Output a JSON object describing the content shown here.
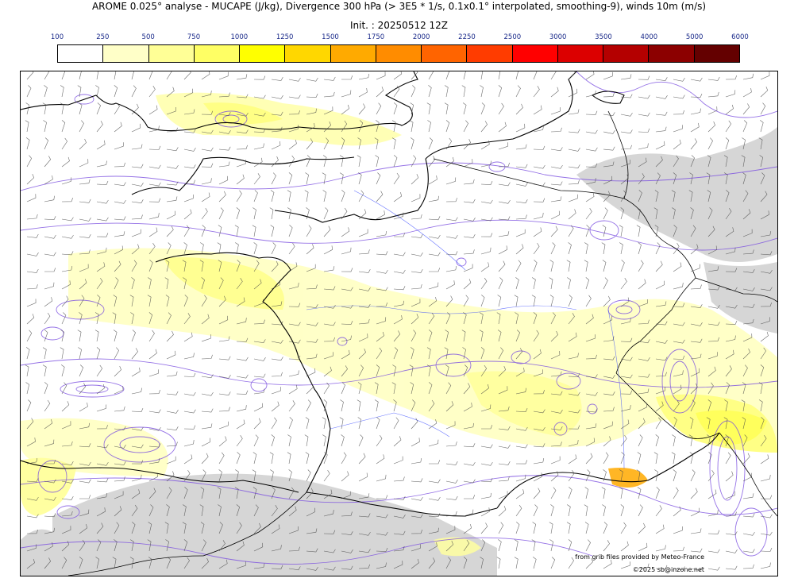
{
  "header": {
    "title": "AROME 0.025° analyse - MUCAPE (J/kg), Divergence 300 hPa (> 3E5 * 1/s, 0.1x0.1° interpolated, smoothing-9), winds 10m (m/s)",
    "init": "Init. : 20250512 12Z"
  },
  "colorbar": {
    "ticks": [
      "100",
      "250",
      "500",
      "750",
      "1000",
      "1250",
      "1500",
      "1750",
      "2000",
      "2250",
      "2500",
      "3000",
      "3500",
      "4000",
      "5000",
      "6000"
    ],
    "colors": [
      "#ffffff",
      "#ffffc8",
      "#ffff96",
      "#ffff64",
      "#ffff00",
      "#ffd700",
      "#ffaa00",
      "#ff8c00",
      "#ff6400",
      "#ff3c00",
      "#ff0000",
      "#dc0000",
      "#b40000",
      "#8c0000",
      "#640000"
    ]
  },
  "map": {
    "land_color": "#ffffff",
    "cape_colors": {
      "low": "#ffffc8",
      "mid": "#ffff96",
      "high": "#ffff64",
      "peak": "#ffaa00"
    },
    "mountain_gray": "#c8c8c8",
    "divergence_contour_color": "#7b4fe0",
    "coastline_color": "#000000"
  },
  "credits": {
    "source": "from grib files provided by Meteo-France",
    "copyright": "©2025 sb@inzone.net"
  }
}
